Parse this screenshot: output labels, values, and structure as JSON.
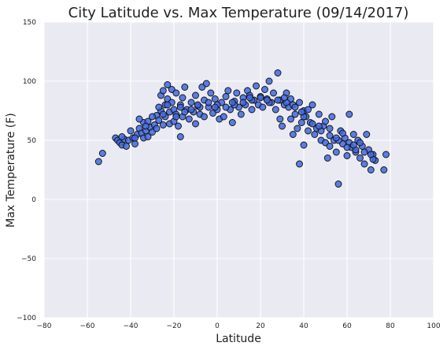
{
  "chart_data": {
    "type": "scatter",
    "title": "City Latitude vs. Max Temperature (09/14/2017)",
    "xlabel": "Latitude",
    "ylabel": "Max Temperature (F)",
    "xlim": [
      -80,
      100
    ],
    "ylim": [
      -100,
      150
    ],
    "xticks": [
      -80,
      -60,
      -40,
      -20,
      0,
      20,
      40,
      60,
      80,
      100
    ],
    "xtick_labels": [
      "−80",
      "−60",
      "−40",
      "−20",
      "0",
      "20",
      "40",
      "60",
      "80",
      "100"
    ],
    "yticks": [
      -100,
      -50,
      0,
      50,
      100,
      150
    ],
    "ytick_labels": [
      "−100",
      "−50",
      "0",
      "50",
      "100",
      "150"
    ],
    "grid": true,
    "marker_color": "#4169e1",
    "marker_edge_color": "#111111",
    "background_color": "#eaeaf2",
    "points": [
      [
        -54.8,
        32
      ],
      [
        -53,
        39
      ],
      [
        -47,
        52
      ],
      [
        -46,
        50
      ],
      [
        -45,
        48
      ],
      [
        -44,
        46
      ],
      [
        -43,
        51
      ],
      [
        -42,
        45
      ],
      [
        -41,
        50
      ],
      [
        -39,
        52
      ],
      [
        -38,
        47
      ],
      [
        -37,
        55
      ],
      [
        -36,
        60
      ],
      [
        -35,
        56
      ],
      [
        -34,
        65
      ],
      [
        -34,
        52
      ],
      [
        -33,
        58
      ],
      [
        -32,
        66
      ],
      [
        -32,
        53
      ],
      [
        -31,
        61
      ],
      [
        -30,
        57
      ],
      [
        -29,
        63
      ],
      [
        -28,
        60
      ],
      [
        -28,
        71
      ],
      [
        -27,
        67
      ],
      [
        -26,
        75
      ],
      [
        -26,
        88
      ],
      [
        -25,
        92
      ],
      [
        -25,
        63
      ],
      [
        -24,
        80
      ],
      [
        -24,
        70
      ],
      [
        -23,
        97
      ],
      [
        -23,
        85
      ],
      [
        -22,
        74
      ],
      [
        -22,
        64
      ],
      [
        -21,
        93
      ],
      [
        -21,
        82
      ],
      [
        -20,
        76
      ],
      [
        -20,
        66
      ],
      [
        -19,
        90
      ],
      [
        -19,
        72
      ],
      [
        -18,
        62
      ],
      [
        -17,
        53
      ],
      [
        -17,
        80
      ],
      [
        -16,
        86
      ],
      [
        -16,
        70
      ],
      [
        -15,
        95
      ],
      [
        -14,
        76
      ],
      [
        -13,
        68
      ],
      [
        -12,
        82
      ],
      [
        -11,
        74
      ],
      [
        -10,
        88
      ],
      [
        -10,
        64
      ],
      [
        -9,
        79
      ],
      [
        -8,
        72
      ],
      [
        -7,
        95
      ],
      [
        -6,
        84
      ],
      [
        -6,
        70
      ],
      [
        -5,
        98
      ],
      [
        -4,
        78
      ],
      [
        -3,
        90
      ],
      [
        -2,
        73
      ],
      [
        -1,
        85
      ],
      [
        0,
        76
      ],
      [
        1,
        68
      ],
      [
        2,
        82
      ],
      [
        3,
        70
      ],
      [
        4,
        87
      ],
      [
        5,
        92
      ],
      [
        6,
        76
      ],
      [
        7,
        65
      ],
      [
        8,
        83
      ],
      [
        9,
        90
      ],
      [
        10,
        78
      ],
      [
        11,
        72
      ],
      [
        12,
        86
      ],
      [
        13,
        80
      ],
      [
        14,
        92
      ],
      [
        15,
        88
      ],
      [
        16,
        76
      ],
      [
        17,
        84
      ],
      [
        18,
        96
      ],
      [
        19,
        80
      ],
      [
        20,
        87
      ],
      [
        21,
        78
      ],
      [
        22,
        93
      ],
      [
        23,
        85
      ],
      [
        24,
        100
      ],
      [
        25,
        82
      ],
      [
        26,
        90
      ],
      [
        27,
        76
      ],
      [
        28,
        107
      ],
      [
        29,
        84
      ],
      [
        29,
        68
      ],
      [
        30,
        62
      ],
      [
        31,
        80
      ],
      [
        32,
        90
      ],
      [
        33,
        78
      ],
      [
        34,
        85
      ],
      [
        35,
        80
      ],
      [
        35,
        55
      ],
      [
        36,
        72
      ],
      [
        37,
        60
      ],
      [
        38,
        30
      ],
      [
        38,
        82
      ],
      [
        39,
        65
      ],
      [
        40,
        75
      ],
      [
        40,
        46
      ],
      [
        41,
        70
      ],
      [
        42,
        58
      ],
      [
        43,
        65
      ],
      [
        44,
        80
      ],
      [
        45,
        55
      ],
      [
        46,
        60
      ],
      [
        47,
        72
      ],
      [
        48,
        50
      ],
      [
        49,
        62
      ],
      [
        50,
        48
      ],
      [
        51,
        35
      ],
      [
        52,
        60
      ],
      [
        52,
        45
      ],
      [
        53,
        70
      ],
      [
        54,
        50
      ],
      [
        55,
        40
      ],
      [
        56,
        13
      ],
      [
        57,
        58
      ],
      [
        58,
        47
      ],
      [
        59,
        52
      ],
      [
        60,
        37
      ],
      [
        61,
        48
      ],
      [
        61,
        72
      ],
      [
        62,
        44
      ],
      [
        63,
        55
      ],
      [
        64,
        40
      ],
      [
        65,
        50
      ],
      [
        66,
        35
      ],
      [
        67,
        45
      ],
      [
        68,
        30
      ],
      [
        69,
        55
      ],
      [
        70,
        42
      ],
      [
        71,
        25
      ],
      [
        72,
        38
      ],
      [
        73,
        33
      ],
      [
        77,
        25
      ],
      [
        78,
        38
      ],
      [
        -44,
        53
      ],
      [
        -40,
        58
      ],
      [
        -36,
        68
      ],
      [
        -30,
        70
      ],
      [
        -27,
        78
      ],
      [
        -23,
        80
      ],
      [
        -19,
        70
      ],
      [
        -15,
        74
      ],
      [
        -12,
        76
      ],
      [
        -8,
        78
      ],
      [
        -4,
        82
      ],
      [
        0,
        80
      ],
      [
        4,
        78
      ],
      [
        8,
        80
      ],
      [
        12,
        82
      ],
      [
        16,
        84
      ],
      [
        20,
        86
      ],
      [
        24,
        82
      ],
      [
        28,
        84
      ],
      [
        32,
        82
      ],
      [
        36,
        78
      ],
      [
        40,
        70
      ],
      [
        44,
        64
      ],
      [
        48,
        58
      ],
      [
        52,
        54
      ],
      [
        56,
        50
      ],
      [
        60,
        44
      ],
      [
        64,
        42
      ],
      [
        68,
        40
      ],
      [
        72,
        34
      ],
      [
        -38,
        52
      ],
      [
        -33,
        62
      ],
      [
        -25,
        72
      ],
      [
        -17,
        78
      ],
      [
        -9,
        80
      ],
      [
        -1,
        78
      ],
      [
        7,
        82
      ],
      [
        15,
        86
      ],
      [
        23,
        84
      ],
      [
        31,
        86
      ],
      [
        39,
        74
      ],
      [
        47,
        62
      ],
      [
        55,
        52
      ],
      [
        63,
        46
      ],
      [
        71,
        38
      ],
      [
        34,
        68
      ],
      [
        42,
        76
      ],
      [
        50,
        66
      ],
      [
        58,
        56
      ],
      [
        66,
        48
      ]
    ]
  }
}
